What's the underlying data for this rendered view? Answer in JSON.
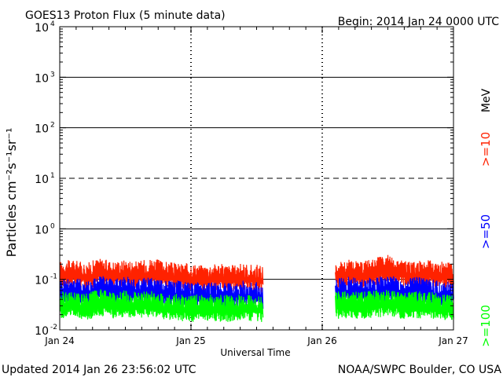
{
  "chart_data": {
    "type": "line",
    "title": "GOES13 Proton Flux (5 minute data)",
    "begin_label": "Begin: 2014 Jan 24 0000 UTC",
    "xlabel": "Universal Time",
    "ylabel": "Particles cm⁻²s⁻¹sr⁻¹",
    "y_scale": "log",
    "ylim": [
      0.01,
      10000
    ],
    "xlim": [
      0,
      3
    ],
    "y_ticks": [
      {
        "value": 0.01,
        "base": "10",
        "exp": "-2"
      },
      {
        "value": 0.1,
        "base": "10",
        "exp": "-1"
      },
      {
        "value": 1,
        "base": "10",
        "exp": "0"
      },
      {
        "value": 10,
        "base": "10",
        "exp": "1"
      },
      {
        "value": 100,
        "base": "10",
        "exp": "2"
      },
      {
        "value": 1000,
        "base": "10",
        "exp": "3"
      },
      {
        "value": 10000,
        "base": "10",
        "exp": "4"
      }
    ],
    "x_ticks": [
      {
        "value": 0,
        "label": "Jan 24"
      },
      {
        "value": 1,
        "label": "Jan 25"
      },
      {
        "value": 2,
        "label": "Jan 26"
      },
      {
        "value": 3,
        "label": "Jan 27"
      }
    ],
    "threshold_lines": [
      {
        "value": 0.1,
        "style": "solid"
      },
      {
        "value": 1,
        "style": "solid"
      },
      {
        "value": 10,
        "style": "dashed"
      },
      {
        "value": 100,
        "style": "solid"
      },
      {
        "value": 1000,
        "style": "solid"
      }
    ],
    "data_gap": [
      1.55,
      2.1
    ],
    "series": [
      {
        "name": ">=10",
        "unit": "MeV",
        "color": "#ff2200",
        "segments": [
          {
            "x": [
              0.0,
              0.1,
              0.2,
              0.3,
              0.4,
              0.5,
              0.6,
              0.7,
              0.8,
              0.9,
              1.0,
              1.1,
              1.2,
              1.3,
              1.4,
              1.55
            ],
            "y": [
              0.12,
              0.13,
              0.11,
              0.14,
              0.12,
              0.13,
              0.12,
              0.14,
              0.12,
              0.11,
              0.11,
              0.1,
              0.11,
              0.1,
              0.11,
              0.1
            ]
          },
          {
            "x": [
              2.1,
              2.2,
              2.3,
              2.4,
              2.5,
              2.6,
              2.7,
              2.8,
              2.9,
              3.0
            ],
            "y": [
              0.12,
              0.13,
              0.12,
              0.14,
              0.16,
              0.13,
              0.12,
              0.13,
              0.12,
              0.11
            ]
          }
        ]
      },
      {
        "name": ">=50",
        "color": "#0000ff",
        "segments": [
          {
            "x": [
              0.0,
              0.1,
              0.2,
              0.3,
              0.4,
              0.5,
              0.6,
              0.7,
              0.8,
              0.9,
              1.0,
              1.1,
              1.2,
              1.3,
              1.4,
              1.55
            ],
            "y": [
              0.055,
              0.06,
              0.05,
              0.065,
              0.055,
              0.06,
              0.055,
              0.06,
              0.05,
              0.05,
              0.045,
              0.05,
              0.045,
              0.045,
              0.05,
              0.045
            ]
          },
          {
            "x": [
              2.1,
              2.2,
              2.3,
              2.4,
              2.5,
              2.6,
              2.7,
              2.8,
              2.9,
              3.0
            ],
            "y": [
              0.055,
              0.06,
              0.055,
              0.06,
              0.065,
              0.055,
              0.06,
              0.055,
              0.05,
              0.05
            ]
          }
        ]
      },
      {
        "name": ">=100",
        "color": "#00ff00",
        "segments": [
          {
            "x": [
              0.0,
              0.1,
              0.2,
              0.3,
              0.4,
              0.5,
              0.6,
              0.7,
              0.8,
              0.9,
              1.0,
              1.1,
              1.2,
              1.3,
              1.4,
              1.55
            ],
            "y": [
              0.03,
              0.032,
              0.028,
              0.034,
              0.03,
              0.032,
              0.03,
              0.031,
              0.028,
              0.027,
              0.026,
              0.028,
              0.026,
              0.026,
              0.027,
              0.026
            ]
          },
          {
            "x": [
              2.1,
              2.2,
              2.3,
              2.4,
              2.5,
              2.6,
              2.7,
              2.8,
              2.9,
              3.0
            ],
            "y": [
              0.03,
              0.031,
              0.03,
              0.032,
              0.033,
              0.03,
              0.031,
              0.03,
              0.028,
              0.027
            ]
          }
        ]
      }
    ]
  },
  "footer": {
    "updated": "Updated 2014 Jan 26 23:56:02 UTC",
    "source": "NOAA/SWPC Boulder, CO USA"
  }
}
